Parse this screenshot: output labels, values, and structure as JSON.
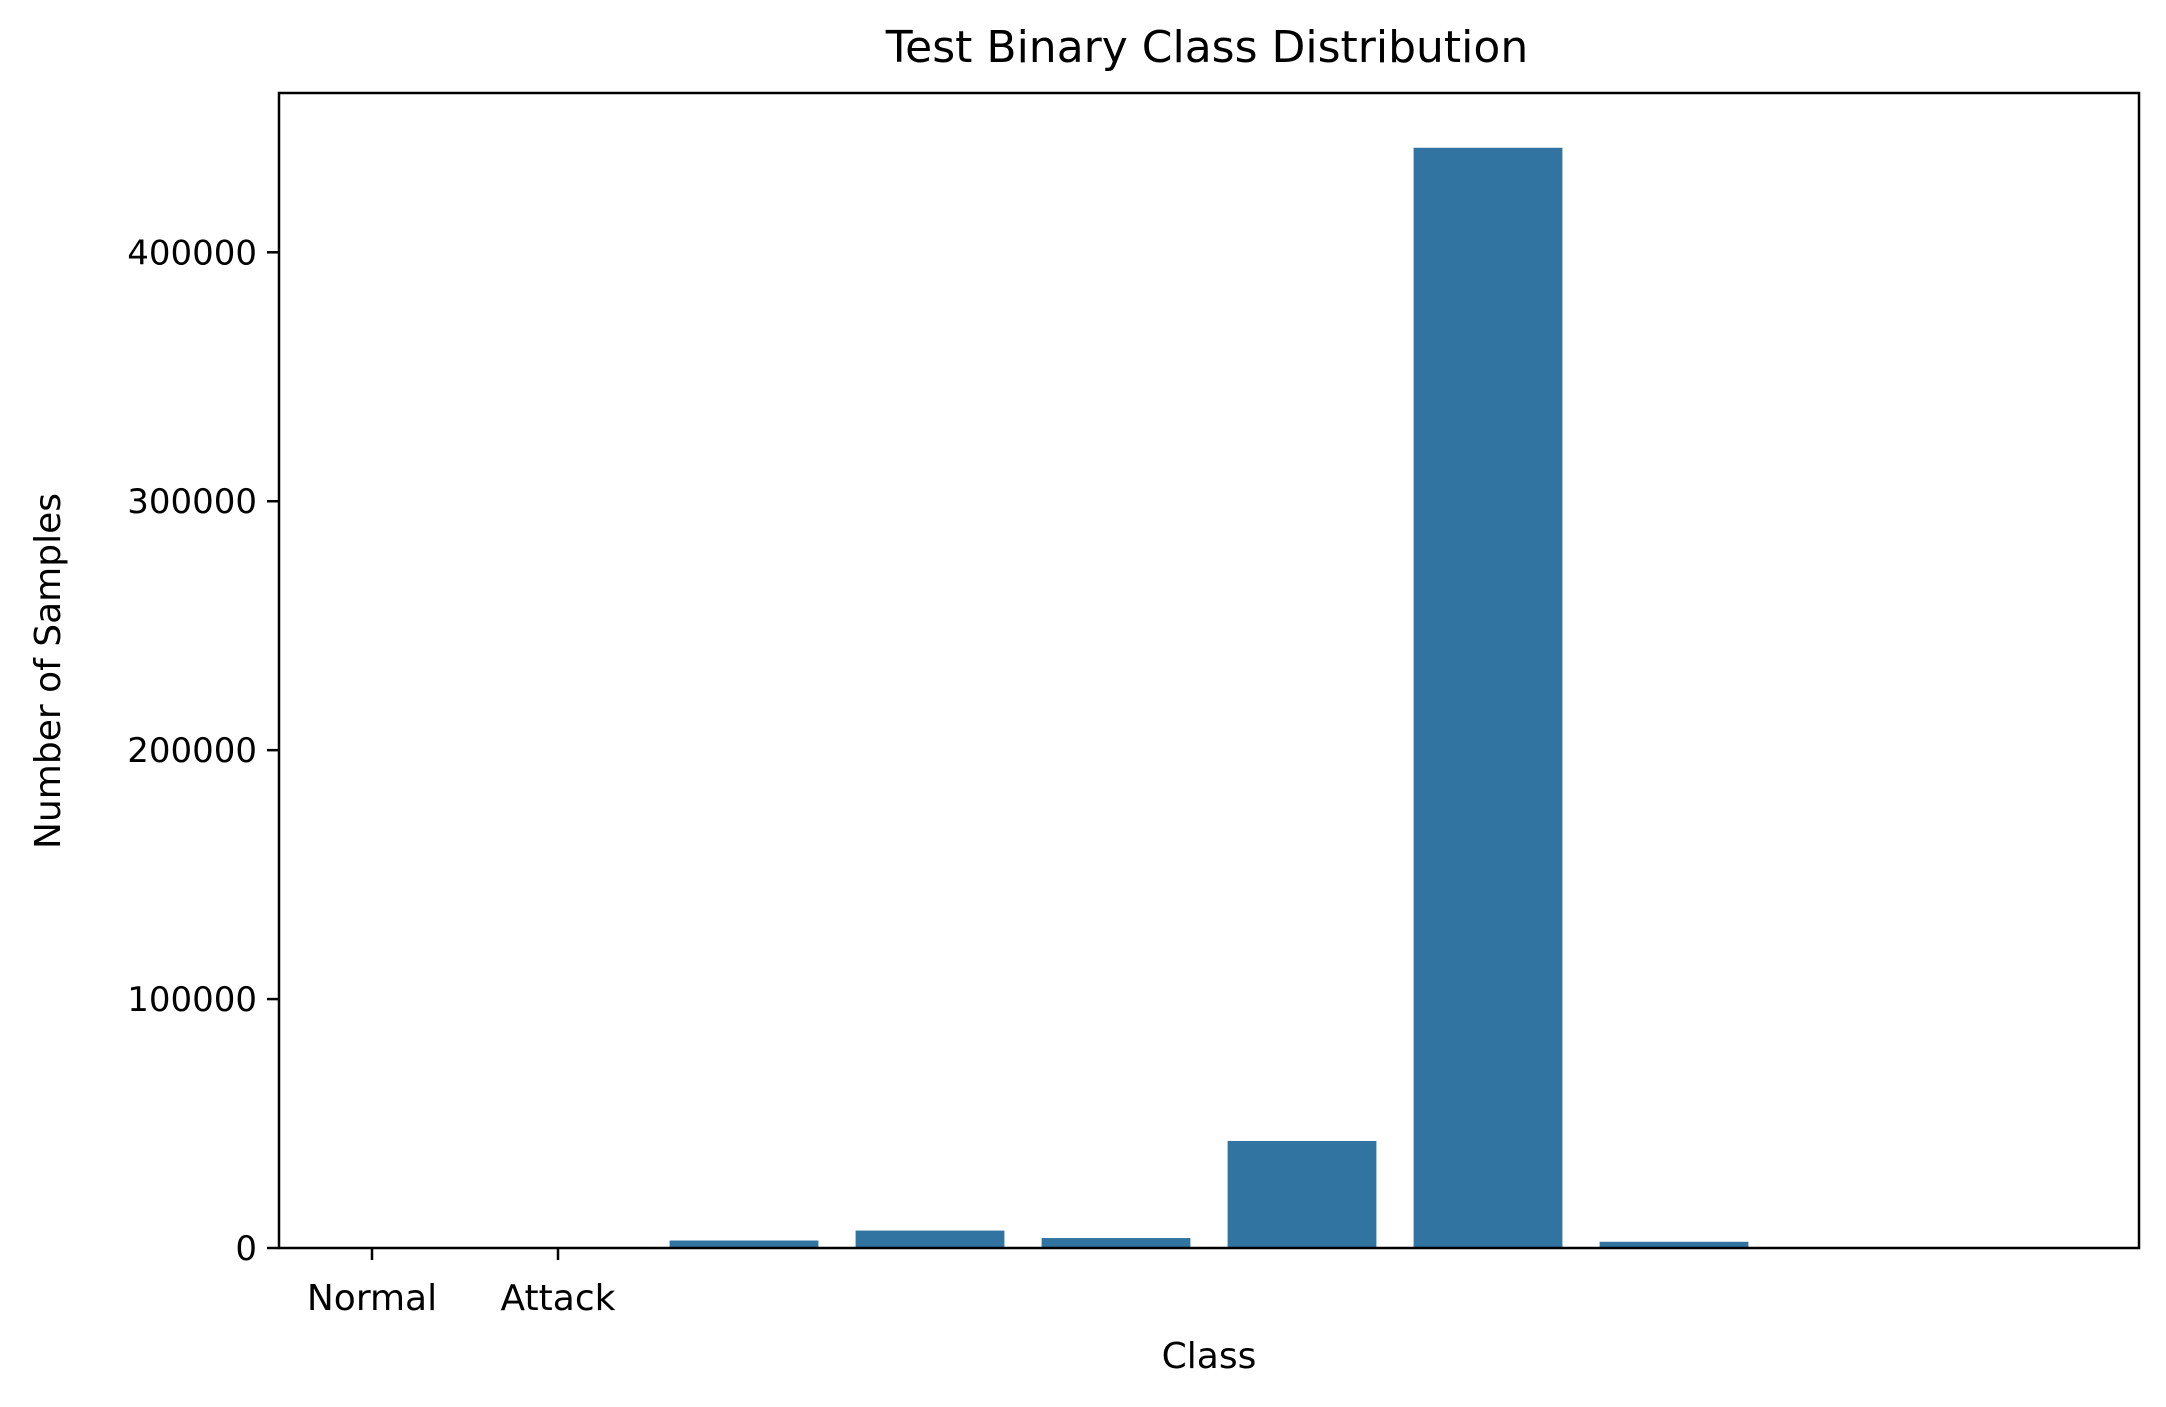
{
  "chart_data": {
    "type": "bar",
    "title": "Test Binary Class Distribution",
    "xlabel": "Class",
    "ylabel": "Number of Samples",
    "x_tick_labels": [
      "Normal",
      "Attack"
    ],
    "bar_positions": [
      2,
      3,
      4,
      5,
      6,
      7,
      8,
      9
    ],
    "values": [
      3000,
      7000,
      4000,
      43000,
      442000,
      2500,
      0,
      0
    ],
    "xlim": [
      -0.5,
      9.5
    ],
    "ylim": [
      0,
      464000
    ],
    "yticks": [
      0,
      100000,
      200000,
      300000,
      400000
    ],
    "bar_color": "#3274a1",
    "grid": false,
    "legend": false
  }
}
